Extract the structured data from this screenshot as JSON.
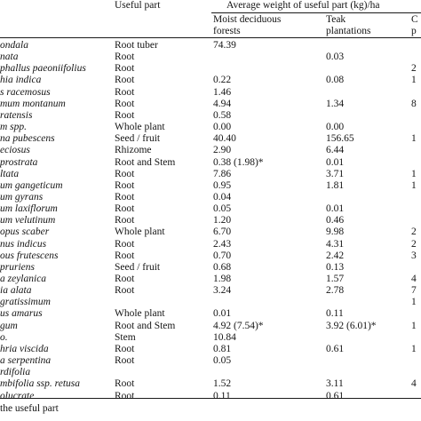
{
  "header": {
    "useful_part": "Useful part",
    "avg_weight": "Average weight of useful part (kg)/ha",
    "moist_1": "Moist deciduous",
    "moist_2": "forests",
    "teak_1": "Teak",
    "teak_2": "plantations",
    "col4_1": "C",
    "col4_2": "p"
  },
  "rows": [
    {
      "species": "ondala",
      "part": "Root tuber",
      "moist": "74.39",
      "teak": "",
      "col4": ""
    },
    {
      "species": "nata",
      "part": "Root",
      "moist": "",
      "teak": "0.03",
      "col4": ""
    },
    {
      "species": "phallus paeoniifolius",
      "part": "Root",
      "moist": "",
      "teak": "",
      "col4": "2"
    },
    {
      "species": "hia indica",
      "part": "Root",
      "moist": "0.22",
      "teak": "0.08",
      "col4": "1"
    },
    {
      "species": "s racemosus",
      "part": "Root",
      "moist": "1.46",
      "teak": "",
      "col4": ""
    },
    {
      "species": "mum montanum",
      "part": "Root",
      "moist": "4.94",
      "teak": "1.34",
      "col4": "8"
    },
    {
      "species": "ratensis",
      "part": "Root",
      "moist": "0.58",
      "teak": "",
      "col4": ""
    },
    {
      "species": "m spp.",
      "part": "Whole plant",
      "moist": "0.00",
      "teak": "0.00",
      "col4": ""
    },
    {
      "species": "na pubescens",
      "part": "Seed / fruit",
      "moist": "40.40",
      "teak": "156.65",
      "col4": "1"
    },
    {
      "species": "eciosus",
      "part": "Rhizome",
      "moist": "2.90",
      "teak": "6.44",
      "col4": ""
    },
    {
      "species": "prostrata",
      "part": "Root and Stem",
      "moist": "0.38 (1.98)*",
      "teak": "0.01",
      "col4": ""
    },
    {
      "species": "ltata",
      "part": "Root",
      "moist": "7.86",
      "teak": "3.71",
      "col4": "1"
    },
    {
      "species": "um gangeticum",
      "part": "Root",
      "moist": "0.95",
      "teak": "1.81",
      "col4": "1"
    },
    {
      "species": "um gyrans",
      "part": "Root",
      "moist": "0.04",
      "teak": "",
      "col4": ""
    },
    {
      "species": "um laxiflorum",
      "part": "Root",
      "moist": "0.05",
      "teak": "0.01",
      "col4": ""
    },
    {
      "species": "um velutinum",
      "part": "Root",
      "moist": "1.20",
      "teak": "0.46",
      "col4": ""
    },
    {
      "species": "opus scaber",
      "part": "Whole plant",
      "moist": "6.70",
      "teak": "9.98",
      "col4": "2"
    },
    {
      "species": "nus indicus",
      "part": "Root",
      "moist": "2.43",
      "teak": "4.31",
      "col4": "2"
    },
    {
      "species": "ous frutescens",
      "part": "Root",
      "moist": "0.70",
      "teak": "2.42",
      "col4": "3"
    },
    {
      "species": "pruriens",
      "part": "Seed / fruit",
      "moist": "0.68",
      "teak": "0.13",
      "col4": ""
    },
    {
      "species": "a zeylanica",
      "part": "Root",
      "moist": "1.98",
      "teak": "1.57",
      "col4": "4"
    },
    {
      "species": "ia alata",
      "part": "Root",
      "moist": "3.24",
      "teak": "2.78",
      "col4": "7"
    },
    {
      "species": "gratissimum",
      "part": "",
      "moist": "",
      "teak": "",
      "col4": "1"
    },
    {
      "species": "us amarus",
      "part": "Whole plant",
      "moist": "0.01",
      "teak": "0.11",
      "col4": ""
    },
    {
      "species": "gum",
      "part": "Root and Stem",
      "moist": "4.92 (7.54)*",
      "teak": "3.92 (6.01)*",
      "col4": "1"
    },
    {
      "species": "o.",
      "part": "Stem",
      "moist": "10.84",
      "teak": "",
      "col4": ""
    },
    {
      "species": "hria viscida",
      "part": "Root",
      "moist": "0.81",
      "teak": "0.61",
      "col4": "1"
    },
    {
      "species": "a serpentina",
      "part": "Root",
      "moist": "0.05",
      "teak": "",
      "col4": ""
    },
    {
      "species": "rdifolia",
      "part": "",
      "moist": "",
      "teak": "",
      "col4": ""
    },
    {
      "species": "mbifolia ssp. retusa",
      "part": "Root",
      "moist": "1.52",
      "teak": "3.11",
      "col4": "4"
    },
    {
      "species": "olucrate",
      "part": "Root",
      "moist": "0.11",
      "teak": "0.61",
      "col4": ""
    }
  ],
  "footnote": "the useful part"
}
